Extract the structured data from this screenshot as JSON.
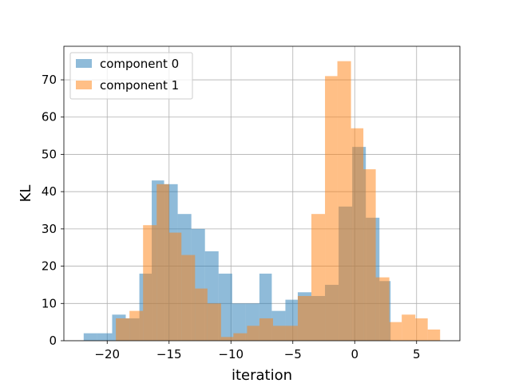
{
  "chart_data": {
    "type": "histogram",
    "title": "",
    "xlabel": "iteration",
    "ylabel": "KL",
    "xlim": [
      -23.5,
      8.5
    ],
    "ylim": [
      0,
      79
    ],
    "xticks": [
      -20,
      -15,
      -10,
      -5,
      0,
      5
    ],
    "xtick_labels": [
      "−20",
      "−15",
      "−10",
      "−5",
      "0",
      "5"
    ],
    "yticks": [
      0,
      10,
      20,
      30,
      40,
      50,
      60,
      70
    ],
    "ytick_labels": [
      "0",
      "10",
      "20",
      "30",
      "40",
      "50",
      "60",
      "70"
    ],
    "grid": true,
    "legend_position": "top-left",
    "series": [
      {
        "name": "component 0",
        "color": "#1f77b4",
        "opacity": 0.5,
        "bins": [
          [
            -21.9,
            -20.8,
            2
          ],
          [
            -20.8,
            -19.6,
            2
          ],
          [
            -19.6,
            -18.5,
            7
          ],
          [
            -18.5,
            -17.4,
            6
          ],
          [
            -17.4,
            -16.4,
            18
          ],
          [
            -16.4,
            -15.4,
            43
          ],
          [
            -15.4,
            -14.3,
            42
          ],
          [
            -14.3,
            -13.2,
            34
          ],
          [
            -13.2,
            -12.1,
            30
          ],
          [
            -12.1,
            -11.0,
            24
          ],
          [
            -11.0,
            -9.9,
            18
          ],
          [
            -9.9,
            -8.8,
            10
          ],
          [
            -8.8,
            -7.7,
            10
          ],
          [
            -7.7,
            -6.7,
            18
          ],
          [
            -6.7,
            -5.6,
            8
          ],
          [
            -5.6,
            -4.6,
            11
          ],
          [
            -4.6,
            -3.5,
            13
          ],
          [
            -3.5,
            -2.4,
            12
          ],
          [
            -2.4,
            -1.3,
            15
          ],
          [
            -1.3,
            -0.2,
            36
          ],
          [
            -0.2,
            0.9,
            52
          ],
          [
            0.9,
            2.0,
            33
          ],
          [
            2.0,
            2.9,
            16
          ]
        ]
      },
      {
        "name": "component 1",
        "color": "#ff7f0e",
        "opacity": 0.5,
        "bins": [
          [
            -19.3,
            -18.2,
            6
          ],
          [
            -18.2,
            -17.1,
            8
          ],
          [
            -17.1,
            -16.0,
            31
          ],
          [
            -16.0,
            -15.0,
            42
          ],
          [
            -15.0,
            -14.0,
            29
          ],
          [
            -14.0,
            -12.9,
            23
          ],
          [
            -12.9,
            -11.9,
            14
          ],
          [
            -11.9,
            -10.8,
            10
          ],
          [
            -10.8,
            -9.8,
            1
          ],
          [
            -9.8,
            -8.7,
            2
          ],
          [
            -8.7,
            -7.7,
            4
          ],
          [
            -7.7,
            -6.6,
            6
          ],
          [
            -6.6,
            -5.6,
            4
          ],
          [
            -5.6,
            -4.6,
            4
          ],
          [
            -4.6,
            -3.5,
            12
          ],
          [
            -3.5,
            -2.4,
            34
          ],
          [
            -2.4,
            -1.4,
            71
          ],
          [
            -1.4,
            -0.3,
            75
          ],
          [
            -0.3,
            0.7,
            57
          ],
          [
            0.7,
            1.7,
            46
          ],
          [
            1.7,
            2.8,
            17
          ],
          [
            2.8,
            3.8,
            5
          ],
          [
            3.8,
            4.9,
            7
          ],
          [
            4.9,
            5.9,
            6
          ],
          [
            5.9,
            6.9,
            3
          ]
        ]
      }
    ]
  }
}
